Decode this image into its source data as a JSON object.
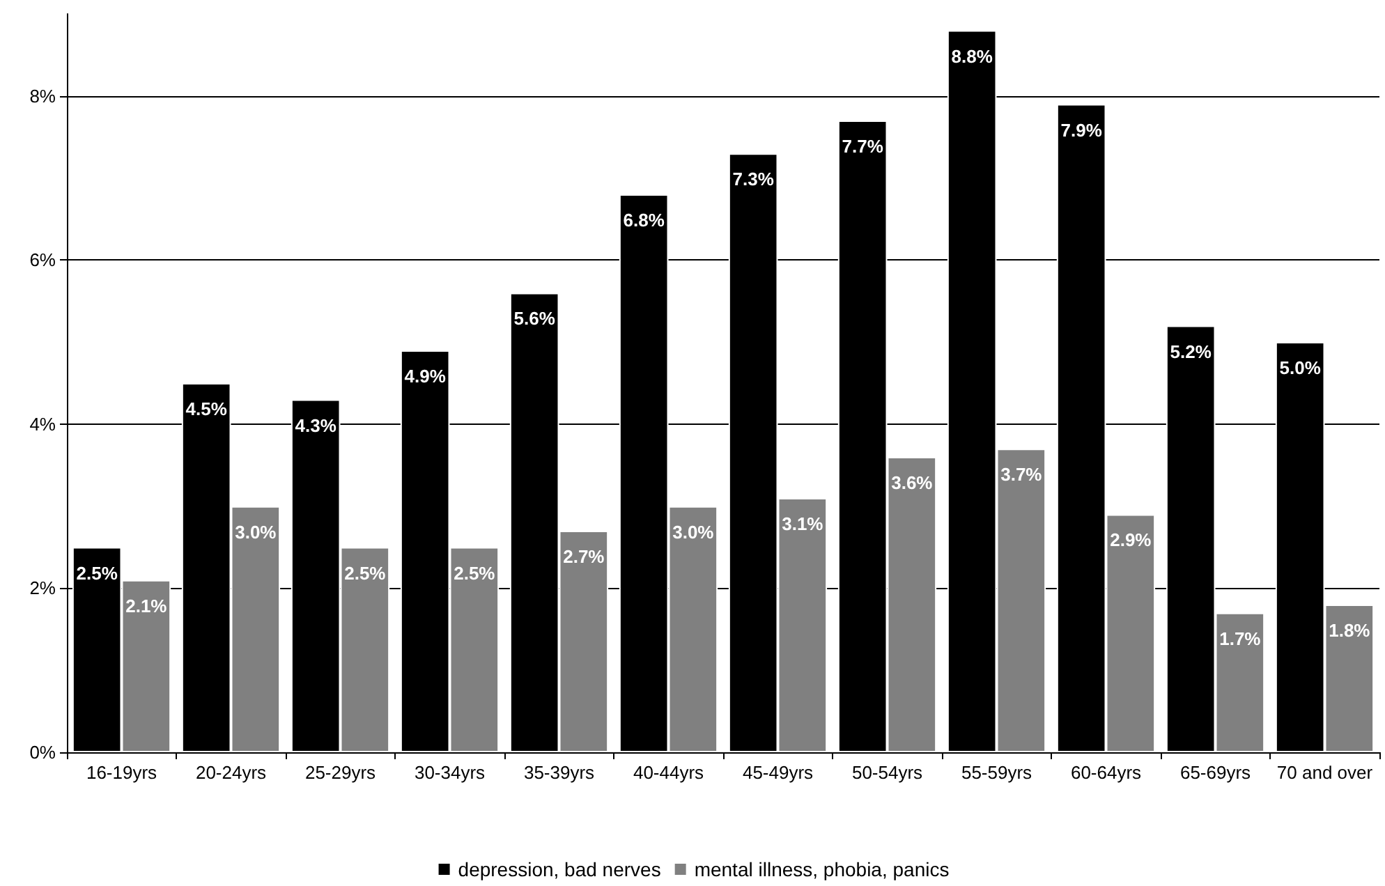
{
  "chart_data": {
    "type": "bar",
    "categories": [
      "16-19yrs",
      "20-24yrs",
      "25-29yrs",
      "30-34yrs",
      "35-39yrs",
      "40-44yrs",
      "45-49yrs",
      "50-54yrs",
      "55-59yrs",
      "60-64yrs",
      "65-69yrs",
      "70 and over"
    ],
    "series": [
      {
        "name": "depression, bad nerves",
        "color": "#000000",
        "values": [
          2.5,
          4.5,
          4.3,
          4.9,
          5.6,
          6.8,
          7.3,
          7.7,
          8.8,
          7.9,
          5.2,
          5.0
        ],
        "value_labels": [
          "2.5%",
          "4.5%",
          "4.3%",
          "4.9%",
          "5.6%",
          "6.8%",
          "7.3%",
          "7.7%",
          "8.8%",
          "7.9%",
          "5.2%",
          "5.0%"
        ]
      },
      {
        "name": "mental illness, phobia, panics",
        "color": "#808080",
        "values": [
          2.1,
          3.0,
          2.5,
          2.5,
          2.7,
          3.0,
          3.1,
          3.6,
          3.7,
          2.9,
          1.7,
          1.8
        ],
        "value_labels": [
          "2.1%",
          "3.0%",
          "2.5%",
          "2.5%",
          "2.7%",
          "3.0%",
          "3.1%",
          "3.6%",
          "3.7%",
          "2.9%",
          "1.7%",
          "1.8%"
        ]
      }
    ],
    "ylim": [
      0,
      9
    ],
    "yticks": [
      {
        "value": 0,
        "label": "0%"
      },
      {
        "value": 2,
        "label": "2%"
      },
      {
        "value": 4,
        "label": "4%"
      },
      {
        "value": 6,
        "label": "6%"
      },
      {
        "value": 8,
        "label": "8%"
      }
    ],
    "grid": "y",
    "legend": "bottom"
  }
}
